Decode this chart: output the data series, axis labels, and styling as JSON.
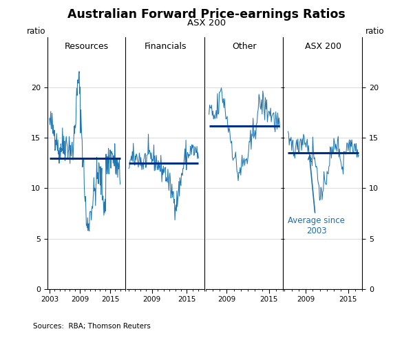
{
  "title": "Australian Forward Price-earnings Ratios",
  "subtitle": "ASX 200",
  "ylabel_left": "ratio",
  "ylabel_right": "ratio",
  "source": "Sources:  RBA; Thomson Reuters",
  "panels": [
    "Resources",
    "Financials",
    "Other",
    "ASX 200"
  ],
  "ylim": [
    0,
    25
  ],
  "yticks": [
    0,
    5,
    10,
    15,
    20
  ],
  "line_color": "#1f77b4",
  "avg_line_color": "#003087",
  "avg_label": "Average since\n2003",
  "annotation_color": "#1a6faf",
  "averages": [
    13.0,
    12.5,
    16.2,
    13.5
  ],
  "background_color": "#ffffff",
  "grid_color": "#cccccc",
  "panel_time_ranges": [
    [
      2003,
      2017
    ],
    [
      2005,
      2017
    ],
    [
      2006.5,
      2016.5
    ],
    [
      2006.5,
      2016.5
    ]
  ]
}
